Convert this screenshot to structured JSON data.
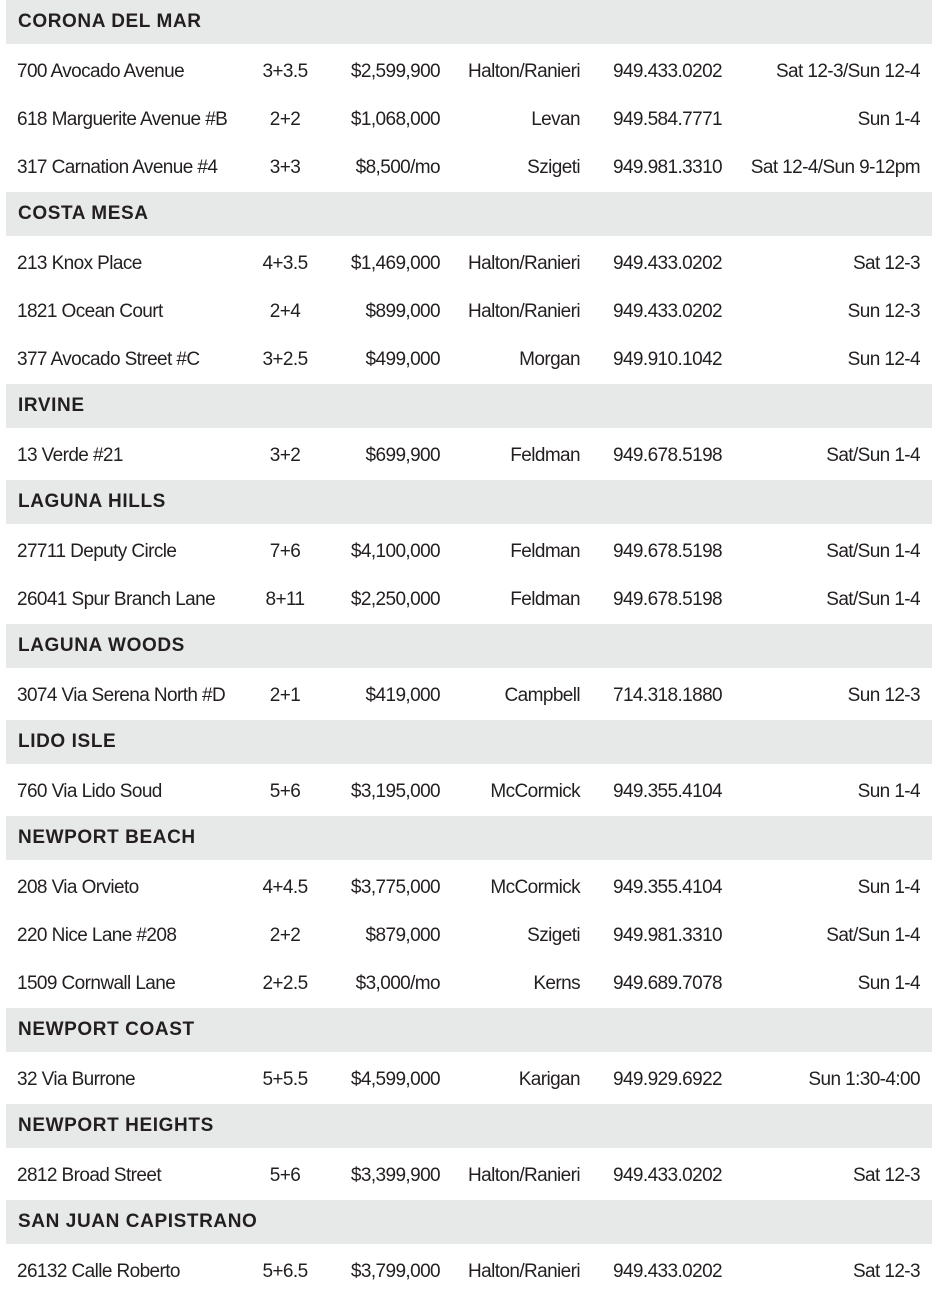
{
  "sections": [
    {
      "city": "Corona del Mar",
      "listings": [
        [
          "700 Avocado Avenue",
          "3+3.5",
          "$2,599,900",
          "Halton/Ranieri",
          "949.433.0202",
          "Sat 12-3/Sun 12-4"
        ],
        [
          "618 Marguerite Avenue #B",
          "2+2",
          "$1,068,000",
          "Levan",
          "949.584.7771",
          "Sun 1-4"
        ],
        [
          "317 Carnation Avenue #4",
          "3+3",
          "$8,500/mo",
          "Szigeti",
          "949.981.3310",
          "Sat 12-4/Sun 9-12pm"
        ]
      ]
    },
    {
      "city": "Costa Mesa",
      "listings": [
        [
          "213 Knox Place",
          "4+3.5",
          "$1,469,000",
          "Halton/Ranieri",
          "949.433.0202",
          "Sat 12-3"
        ],
        [
          "1821 Ocean Court",
          "2+4",
          "$899,000",
          "Halton/Ranieri",
          "949.433.0202",
          "Sun 12-3"
        ],
        [
          "377 Avocado Street #C",
          "3+2.5",
          "$499,000",
          "Morgan",
          "949.910.1042",
          "Sun 12-4"
        ]
      ]
    },
    {
      "city": "Irvine",
      "listings": [
        [
          "13 Verde #21",
          "3+2",
          "$699,900",
          "Feldman",
          "949.678.5198",
          "Sat/Sun 1-4"
        ]
      ]
    },
    {
      "city": "Laguna Hills",
      "listings": [
        [
          "27711 Deputy Circle",
          "7+6",
          "$4,100,000",
          "Feldman",
          "949.678.5198",
          "Sat/Sun 1-4"
        ],
        [
          "26041 Spur Branch Lane",
          "8+11",
          "$2,250,000",
          "Feldman",
          "949.678.5198",
          "Sat/Sun 1-4"
        ]
      ]
    },
    {
      "city": "Laguna Woods",
      "listings": [
        [
          "3074 Via Serena North #D",
          "2+1",
          "$419,000",
          "Campbell",
          "714.318.1880",
          "Sun 12-3"
        ]
      ]
    },
    {
      "city": "Lido Isle",
      "listings": [
        [
          "760 Via Lido Soud",
          "5+6",
          "$3,195,000",
          "McCormick",
          "949.355.4104",
          "Sun 1-4"
        ]
      ]
    },
    {
      "city": "Newport Beach",
      "listings": [
        [
          "208 Via Orvieto",
          "4+4.5",
          "$3,775,000",
          "McCormick",
          "949.355.4104",
          "Sun 1-4"
        ],
        [
          "220 Nice Lane #208",
          "2+2",
          "$879,000",
          "Szigeti",
          "949.981.3310",
          "Sat/Sun 1-4"
        ],
        [
          "1509 Cornwall Lane",
          "2+2.5",
          "$3,000/mo",
          "Kerns",
          "949.689.7078",
          "Sun 1-4"
        ]
      ]
    },
    {
      "city": "Newport Coast",
      "listings": [
        [
          "32 Via Burrone",
          "5+5.5",
          "$4,599,000",
          "Karigan",
          "949.929.6922",
          "Sun 1:30-4:00"
        ]
      ]
    },
    {
      "city": "Newport Heights",
      "listings": [
        [
          "2812 Broad Street",
          "5+6",
          "$3,399,900",
          "Halton/Ranieri",
          "949.433.0202",
          "Sat 12-3"
        ]
      ]
    },
    {
      "city": "San Juan Capistrano",
      "listings": [
        [
          "26132 Calle Roberto",
          "5+6.5",
          "$3,799,000",
          "Halton/Ranieri",
          "949.433.0202",
          "Sat 12-3"
        ]
      ]
    }
  ]
}
